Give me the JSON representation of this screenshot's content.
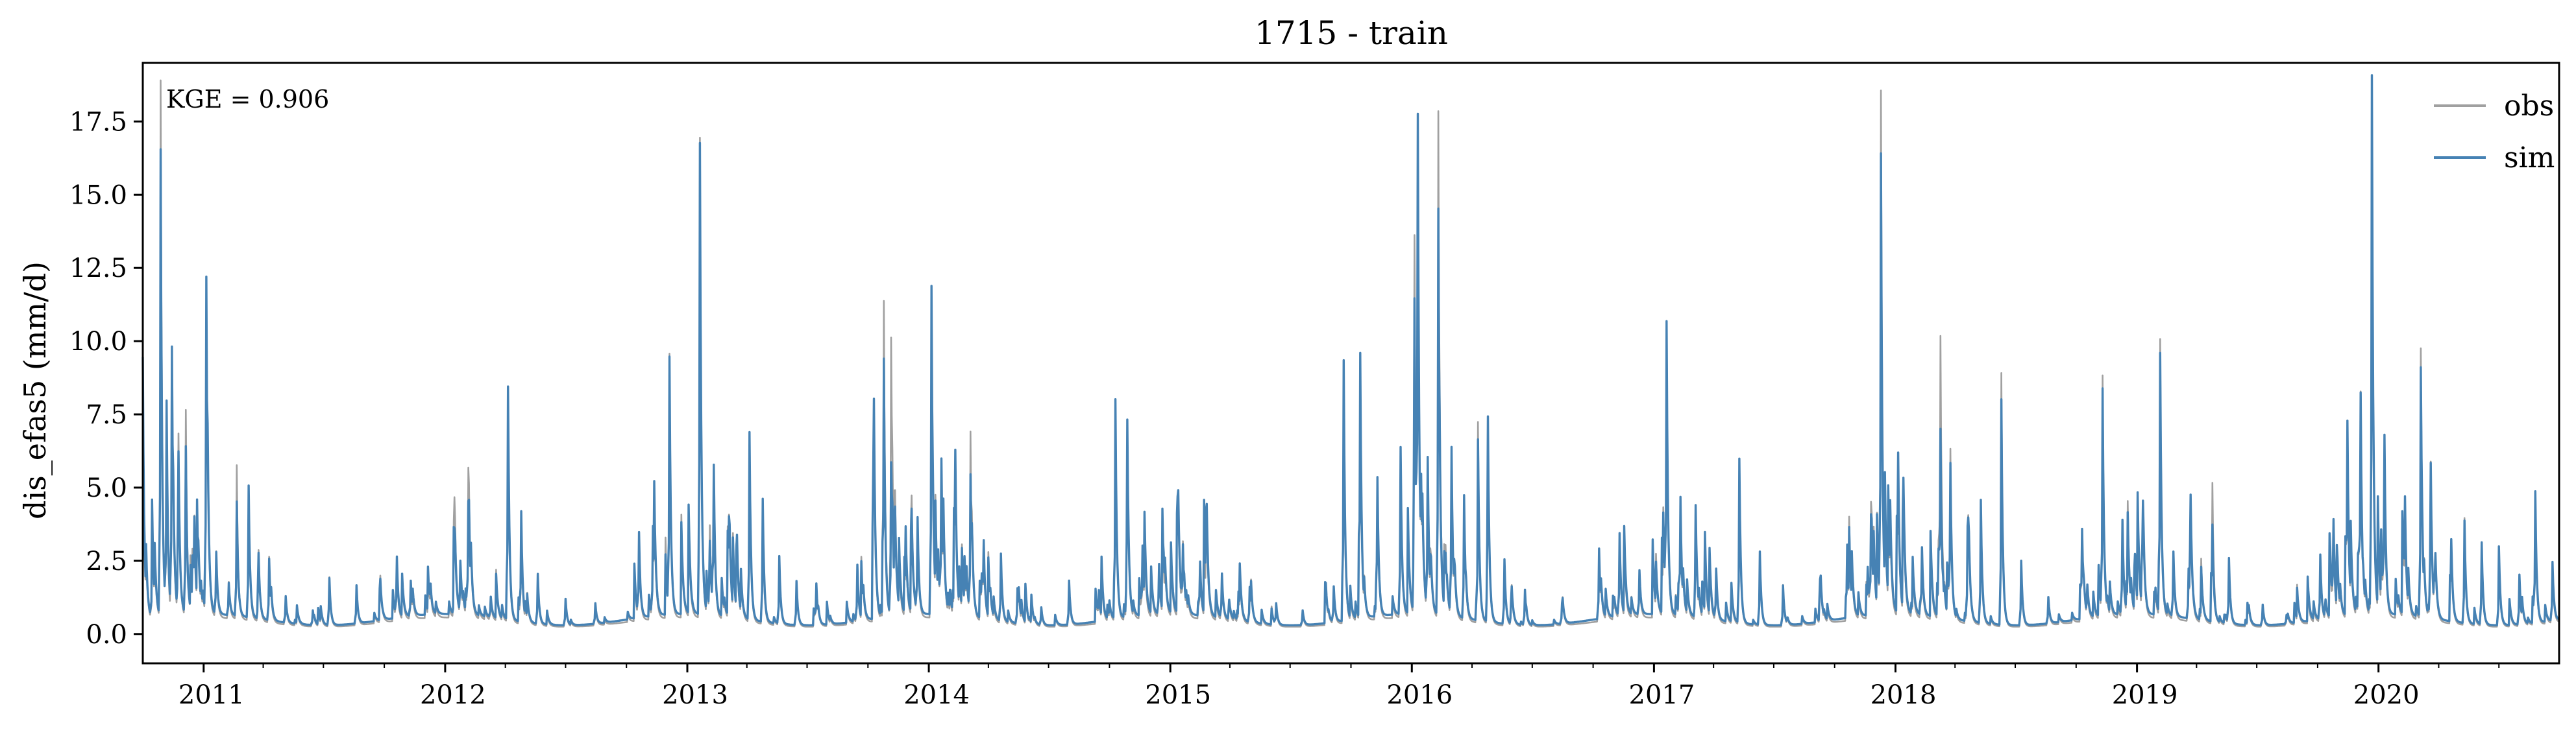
{
  "chart_data": {
    "type": "line",
    "title": "1715 - train",
    "ylabel": "dis_efas5 (mm/d)",
    "xlabel": "",
    "annotation": "KGE = 0.906",
    "xlim": [
      "2010-10-01",
      "2020-09-30"
    ],
    "ylim": [
      -1.0,
      19.5
    ],
    "yticks": [
      0.0,
      2.5,
      5.0,
      7.5,
      10.0,
      12.5,
      15.0,
      17.5
    ],
    "ytick_labels": [
      "0.0",
      "2.5",
      "5.0",
      "7.5",
      "10.0",
      "12.5",
      "15.0",
      "17.5"
    ],
    "xticks": [
      "2011-01-01",
      "2012-01-01",
      "2013-01-01",
      "2014-01-01",
      "2015-01-01",
      "2016-01-01",
      "2017-01-01",
      "2018-01-01",
      "2019-01-01",
      "2020-01-01"
    ],
    "xtick_labels": [
      "2011",
      "2012",
      "2013",
      "2014",
      "2015",
      "2016",
      "2017",
      "2018",
      "2019",
      "2020"
    ],
    "grid": false,
    "legend_position": "top-right",
    "series": [
      {
        "name": "obs",
        "color": "#a0a0a0",
        "baseline": 0.25,
        "peaks": [
          [
            "2010-10-01",
            8.8
          ],
          [
            "2010-10-15",
            2.0
          ],
          [
            "2010-10-28",
            18.6
          ],
          [
            "2010-11-06",
            6.0
          ],
          [
            "2010-11-14",
            9.2
          ],
          [
            "2010-11-24",
            5.0
          ],
          [
            "2010-12-05",
            7.3
          ],
          [
            "2010-12-18",
            3.0
          ],
          [
            "2011-01-05",
            11.6
          ],
          [
            "2011-01-20",
            2.5
          ],
          [
            "2011-02-08",
            1.5
          ],
          [
            "2011-02-20",
            5.5
          ],
          [
            "2011-03-10",
            4.8
          ],
          [
            "2011-03-25",
            2.0
          ],
          [
            "2011-04-10",
            2.5
          ],
          [
            "2011-05-05",
            1.2
          ],
          [
            "2011-06-15",
            0.8
          ],
          [
            "2011-07-10",
            1.8
          ],
          [
            "2011-08-20",
            1.6
          ],
          [
            "2011-10-20",
            2.2
          ],
          [
            "2011-11-10",
            1.5
          ],
          [
            "2011-12-10",
            1.0
          ],
          [
            "2012-01-15",
            2.5
          ],
          [
            "2012-02-05",
            5.2
          ],
          [
            "2012-03-10",
            1.0
          ],
          [
            "2012-04-05",
            7.8
          ],
          [
            "2012-04-25",
            3.5
          ],
          [
            "2012-05-20",
            2.0
          ],
          [
            "2012-07-01",
            1.2
          ],
          [
            "2012-08-15",
            1.0
          ],
          [
            "2012-10-20",
            3.1
          ],
          [
            "2012-11-10",
            3.3
          ],
          [
            "2012-12-05",
            9.0
          ],
          [
            "2013-01-20",
            15.0
          ],
          [
            "2013-02-10",
            5.0
          ],
          [
            "2013-03-05",
            2.5
          ],
          [
            "2013-04-05",
            6.5
          ],
          [
            "2013-04-25",
            4.0
          ],
          [
            "2013-05-20",
            2.6
          ],
          [
            "2013-06-15",
            1.8
          ],
          [
            "2013-07-15",
            1.6
          ],
          [
            "2013-09-15",
            2.2
          ],
          [
            "2013-10-10",
            5.0
          ],
          [
            "2013-10-25",
            10.3
          ],
          [
            "2013-11-05",
            9.8
          ],
          [
            "2013-12-15",
            3.5
          ],
          [
            "2014-01-05",
            11.5
          ],
          [
            "2014-01-20",
            5.3
          ],
          [
            "2014-02-10",
            4.5
          ],
          [
            "2014-03-05",
            6.5
          ],
          [
            "2014-03-25",
            2.5
          ],
          [
            "2014-04-20",
            2.6
          ],
          [
            "2014-05-15",
            1.5
          ],
          [
            "2014-06-20",
            0.9
          ],
          [
            "2014-08-01",
            1.8
          ],
          [
            "2014-09-15",
            1.2
          ],
          [
            "2014-10-10",
            7.6
          ],
          [
            "2014-10-28",
            6.2
          ],
          [
            "2014-11-20",
            2.5
          ],
          [
            "2014-12-15",
            2.0
          ],
          [
            "2015-01-20",
            2.6
          ],
          [
            "2015-02-15",
            2.0
          ],
          [
            "2015-03-20",
            1.8
          ],
          [
            "2015-05-01",
            1.5
          ],
          [
            "2015-06-10",
            1.0
          ],
          [
            "2015-07-20",
            0.8
          ],
          [
            "2015-09-05",
            1.5
          ],
          [
            "2015-09-20",
            8.6
          ],
          [
            "2015-10-15",
            8.4
          ],
          [
            "2015-11-10",
            4.5
          ],
          [
            "2015-12-15",
            6.0
          ],
          [
            "2016-01-05",
            11.6
          ],
          [
            "2016-01-10",
            16.0
          ],
          [
            "2016-01-25",
            5.5
          ],
          [
            "2016-02-10",
            16.3
          ],
          [
            "2016-03-01",
            6.0
          ],
          [
            "2016-03-20",
            4.5
          ],
          [
            "2016-04-10",
            6.0
          ],
          [
            "2016-04-25",
            6.4
          ],
          [
            "2016-05-20",
            2.5
          ],
          [
            "2016-06-20",
            1.5
          ],
          [
            "2016-08-15",
            1.0
          ],
          [
            "2016-10-10",
            2.7
          ],
          [
            "2016-11-10",
            3.1
          ],
          [
            "2016-12-10",
            1.8
          ],
          [
            "2017-01-20",
            9.7
          ],
          [
            "2017-02-10",
            4.0
          ],
          [
            "2017-03-05",
            2.5
          ],
          [
            "2017-04-05",
            2.0
          ],
          [
            "2017-05-10",
            5.9
          ],
          [
            "2017-06-10",
            2.8
          ],
          [
            "2017-07-15",
            1.5
          ],
          [
            "2017-09-10",
            1.0
          ],
          [
            "2017-10-20",
            2.6
          ],
          [
            "2017-11-25",
            4.0
          ],
          [
            "2017-12-10",
            17.9
          ],
          [
            "2018-01-05",
            4.5
          ],
          [
            "2018-02-10",
            2.5
          ],
          [
            "2018-03-10",
            9.1
          ],
          [
            "2018-03-25",
            5.5
          ],
          [
            "2018-04-20",
            3.5
          ],
          [
            "2018-05-10",
            4.5
          ],
          [
            "2018-06-10",
            8.9
          ],
          [
            "2018-07-10",
            2.5
          ],
          [
            "2018-08-20",
            1.2
          ],
          [
            "2018-10-10",
            3.0
          ],
          [
            "2018-11-10",
            8.4
          ],
          [
            "2018-12-10",
            3.5
          ],
          [
            "2019-01-10",
            3.0
          ],
          [
            "2019-02-05",
            9.5
          ],
          [
            "2019-02-25",
            2.5
          ],
          [
            "2019-03-20",
            2.0
          ],
          [
            "2019-04-25",
            4.6
          ],
          [
            "2019-05-20",
            2.5
          ],
          [
            "2019-07-10",
            1.0
          ],
          [
            "2019-08-15",
            0.6
          ],
          [
            "2019-10-05",
            2.5
          ],
          [
            "2019-10-25",
            3.0
          ],
          [
            "2019-11-15",
            6.1
          ],
          [
            "2019-12-05",
            7.3
          ],
          [
            "2019-12-22",
            18.1
          ],
          [
            "2020-01-10",
            6.0
          ],
          [
            "2020-02-10",
            3.6
          ],
          [
            "2020-03-05",
            9.5
          ],
          [
            "2020-03-20",
            5.0
          ],
          [
            "2020-04-20",
            2.5
          ],
          [
            "2020-05-10",
            3.9
          ],
          [
            "2020-06-05",
            3.1
          ],
          [
            "2020-07-01",
            2.5
          ],
          [
            "2020-08-01",
            2.0
          ],
          [
            "2020-08-25",
            4.5
          ],
          [
            "2020-09-20",
            2.3
          ]
        ]
      },
      {
        "name": "sim",
        "color": "#4682b4",
        "baseline": 0.3,
        "peaks": [
          [
            "2010-10-01",
            9.0
          ],
          [
            "2010-10-15",
            2.2
          ],
          [
            "2010-10-28",
            16.2
          ],
          [
            "2010-11-06",
            7.4
          ],
          [
            "2010-11-14",
            9.3
          ],
          [
            "2010-11-24",
            4.5
          ],
          [
            "2010-12-05",
            6.0
          ],
          [
            "2010-12-18",
            3.0
          ],
          [
            "2011-01-05",
            11.7
          ],
          [
            "2011-01-20",
            2.4
          ],
          [
            "2011-02-08",
            1.4
          ],
          [
            "2011-02-20",
            4.2
          ],
          [
            "2011-03-10",
            4.8
          ],
          [
            "2011-03-25",
            2.0
          ],
          [
            "2011-04-10",
            2.4
          ],
          [
            "2011-05-05",
            1.2
          ],
          [
            "2011-06-15",
            0.8
          ],
          [
            "2011-07-10",
            1.8
          ],
          [
            "2011-08-20",
            1.6
          ],
          [
            "2011-10-20",
            2.3
          ],
          [
            "2011-11-10",
            1.5
          ],
          [
            "2011-12-10",
            1.0
          ],
          [
            "2012-01-15",
            1.4
          ],
          [
            "2012-02-05",
            4.0
          ],
          [
            "2012-03-10",
            1.0
          ],
          [
            "2012-04-05",
            8.0
          ],
          [
            "2012-04-25",
            3.9
          ],
          [
            "2012-05-20",
            2.0
          ],
          [
            "2012-07-01",
            1.2
          ],
          [
            "2012-08-15",
            1.0
          ],
          [
            "2012-10-20",
            3.1
          ],
          [
            "2012-11-10",
            3.3
          ],
          [
            "2012-12-05",
            8.9
          ],
          [
            "2013-01-20",
            14.5
          ],
          [
            "2013-02-10",
            5.0
          ],
          [
            "2013-03-05",
            2.5
          ],
          [
            "2013-04-05",
            6.7
          ],
          [
            "2013-04-25",
            4.5
          ],
          [
            "2013-05-20",
            2.6
          ],
          [
            "2013-06-15",
            1.8
          ],
          [
            "2013-07-15",
            1.6
          ],
          [
            "2013-09-15",
            2.2
          ],
          [
            "2013-10-10",
            5.1
          ],
          [
            "2013-10-25",
            8.4
          ],
          [
            "2013-11-05",
            5.5
          ],
          [
            "2013-12-15",
            3.5
          ],
          [
            "2014-01-05",
            11.5
          ],
          [
            "2014-01-20",
            5.3
          ],
          [
            "2014-02-10",
            4.5
          ],
          [
            "2014-03-05",
            5.0
          ],
          [
            "2014-03-25",
            2.5
          ],
          [
            "2014-04-20",
            2.6
          ],
          [
            "2014-05-15",
            1.5
          ],
          [
            "2014-06-20",
            0.9
          ],
          [
            "2014-08-01",
            1.8
          ],
          [
            "2014-09-15",
            1.2
          ],
          [
            "2014-10-10",
            7.6
          ],
          [
            "2014-10-28",
            6.3
          ],
          [
            "2014-11-20",
            2.5
          ],
          [
            "2014-12-15",
            2.0
          ],
          [
            "2015-01-20",
            2.4
          ],
          [
            "2015-02-15",
            2.0
          ],
          [
            "2015-03-20",
            1.8
          ],
          [
            "2015-05-01",
            1.5
          ],
          [
            "2015-06-10",
            1.0
          ],
          [
            "2015-07-20",
            0.8
          ],
          [
            "2015-09-05",
            1.5
          ],
          [
            "2015-09-20",
            9.0
          ],
          [
            "2015-10-15",
            8.5
          ],
          [
            "2015-11-10",
            4.5
          ],
          [
            "2015-12-15",
            6.0
          ],
          [
            "2016-01-05",
            9.5
          ],
          [
            "2016-01-10",
            16.2
          ],
          [
            "2016-01-25",
            5.5
          ],
          [
            "2016-02-10",
            13.2
          ],
          [
            "2016-03-01",
            6.0
          ],
          [
            "2016-03-20",
            4.5
          ],
          [
            "2016-04-10",
            5.5
          ],
          [
            "2016-04-25",
            6.5
          ],
          [
            "2016-05-20",
            2.5
          ],
          [
            "2016-06-20",
            1.5
          ],
          [
            "2016-08-15",
            1.0
          ],
          [
            "2016-10-10",
            2.7
          ],
          [
            "2016-11-10",
            3.1
          ],
          [
            "2016-12-10",
            1.8
          ],
          [
            "2017-01-20",
            9.8
          ],
          [
            "2017-02-10",
            4.0
          ],
          [
            "2017-03-05",
            2.5
          ],
          [
            "2017-04-05",
            2.0
          ],
          [
            "2017-05-10",
            5.9
          ],
          [
            "2017-06-10",
            2.8
          ],
          [
            "2017-07-15",
            1.5
          ],
          [
            "2017-09-10",
            1.0
          ],
          [
            "2017-10-20",
            2.6
          ],
          [
            "2017-11-25",
            3.5
          ],
          [
            "2017-12-10",
            15.7
          ],
          [
            "2018-01-05",
            4.5
          ],
          [
            "2018-02-10",
            2.5
          ],
          [
            "2018-03-10",
            6.0
          ],
          [
            "2018-03-25",
            5.0
          ],
          [
            "2018-04-20",
            3.5
          ],
          [
            "2018-05-10",
            4.5
          ],
          [
            "2018-06-10",
            8.0
          ],
          [
            "2018-07-10",
            2.5
          ],
          [
            "2018-08-20",
            1.2
          ],
          [
            "2018-10-10",
            3.0
          ],
          [
            "2018-11-10",
            7.9
          ],
          [
            "2018-12-10",
            3.5
          ],
          [
            "2019-01-10",
            3.0
          ],
          [
            "2019-02-05",
            8.9
          ],
          [
            "2019-02-25",
            2.5
          ],
          [
            "2019-03-20",
            2.0
          ],
          [
            "2019-04-25",
            3.0
          ],
          [
            "2019-05-20",
            2.5
          ],
          [
            "2019-07-10",
            1.0
          ],
          [
            "2019-08-15",
            0.6
          ],
          [
            "2019-10-05",
            2.5
          ],
          [
            "2019-10-25",
            3.0
          ],
          [
            "2019-11-15",
            6.1
          ],
          [
            "2019-12-05",
            7.2
          ],
          [
            "2019-12-22",
            18.1
          ],
          [
            "2020-01-10",
            6.0
          ],
          [
            "2020-02-10",
            3.6
          ],
          [
            "2020-03-05",
            8.8
          ],
          [
            "2020-03-20",
            5.0
          ],
          [
            "2020-04-20",
            2.5
          ],
          [
            "2020-05-10",
            3.8
          ],
          [
            "2020-06-05",
            3.1
          ],
          [
            "2020-07-01",
            2.5
          ],
          [
            "2020-08-01",
            2.0
          ],
          [
            "2020-08-25",
            4.6
          ],
          [
            "2020-09-20",
            2.3
          ]
        ]
      }
    ]
  }
}
